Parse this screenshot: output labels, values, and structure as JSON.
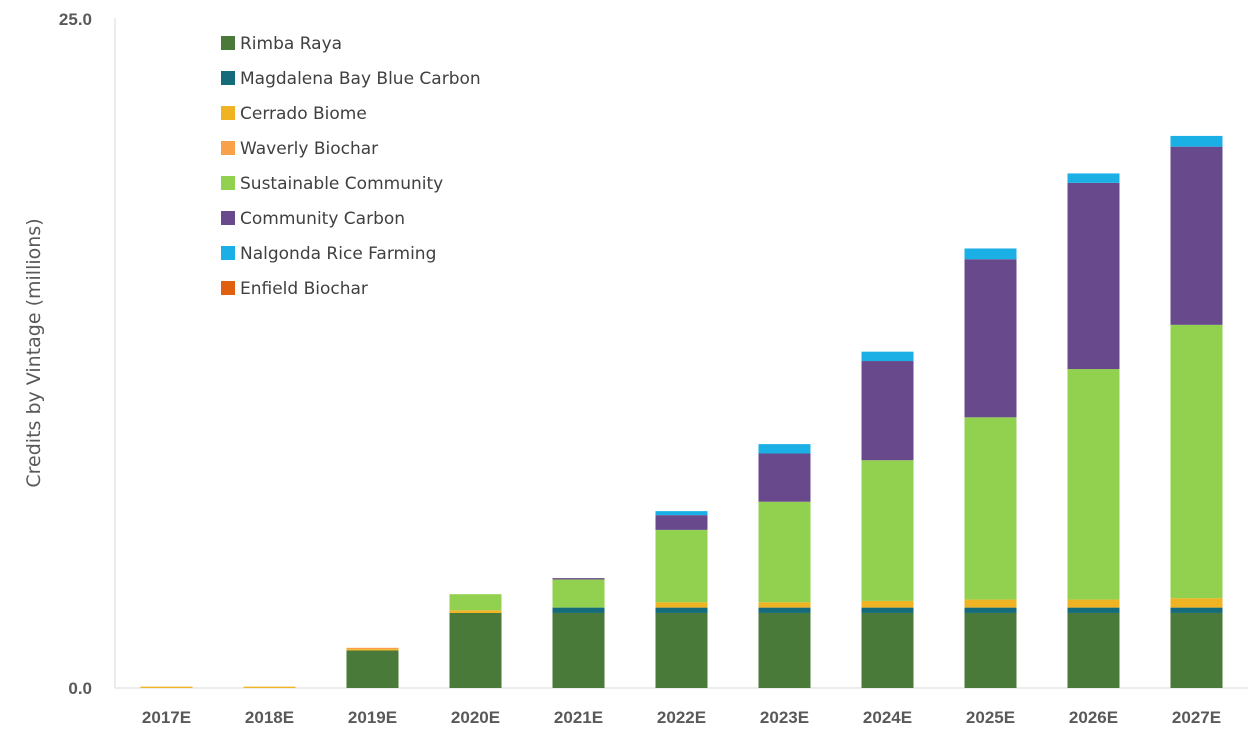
{
  "chart_data": {
    "type": "bar",
    "stacked": true,
    "title": "",
    "xlabel": "",
    "ylabel": "Credits by Vintage (millions)",
    "ylim": [
      0,
      25
    ],
    "y_tick_labels": [
      "0.0",
      "25.0"
    ],
    "grid": false,
    "legend_position": "top-left",
    "categories": [
      "2017E",
      "2018E",
      "2019E",
      "2020E",
      "2021E",
      "2022E",
      "2023E",
      "2024E",
      "2025E",
      "2026E",
      "2027E"
    ],
    "series": [
      {
        "name": "Rimba Raya",
        "color": "#4a7a3a",
        "values": [
          0.0,
          0.0,
          1.4,
          2.8,
          2.8,
          2.8,
          2.8,
          2.8,
          2.8,
          2.8,
          2.8
        ]
      },
      {
        "name": "Magdalena Bay Blue Carbon",
        "color": "#156b7a",
        "values": [
          0.0,
          0.0,
          0.0,
          0.0,
          0.2,
          0.2,
          0.2,
          0.2,
          0.2,
          0.2,
          0.2
        ]
      },
      {
        "name": "Cerrado Biome",
        "color": "#f0b323",
        "values": [
          0.05,
          0.05,
          0.05,
          0.1,
          0.0,
          0.2,
          0.2,
          0.25,
          0.3,
          0.3,
          0.35
        ]
      },
      {
        "name": "Waverly Biochar",
        "color": "#f9a04a",
        "values": [
          0.0,
          0.0,
          0.05,
          0.0,
          0.0,
          0.0,
          0.0,
          0.0,
          0.0,
          0.0,
          0.0
        ]
      },
      {
        "name": "Sustainable Community",
        "color": "#92d050",
        "values": [
          0.0,
          0.0,
          0.0,
          0.6,
          1.05,
          2.7,
          3.75,
          5.25,
          6.8,
          8.6,
          10.2
        ]
      },
      {
        "name": "Community Carbon",
        "color": "#684a8c",
        "values": [
          0.0,
          0.0,
          0.0,
          0.0,
          0.05,
          0.55,
          1.8,
          3.7,
          5.9,
          6.95,
          6.65
        ]
      },
      {
        "name": "Nalgonda Rice Farming",
        "color": "#1ab0e6",
        "values": [
          0.0,
          0.0,
          0.0,
          0.0,
          0.0,
          0.15,
          0.35,
          0.35,
          0.4,
          0.35,
          0.4
        ]
      },
      {
        "name": "Enfield Biochar",
        "color": "#e06010",
        "values": [
          0.0,
          0.0,
          0.0,
          0.0,
          0.0,
          0.0,
          0.0,
          0.0,
          0.0,
          0.0,
          0.0
        ]
      }
    ]
  }
}
